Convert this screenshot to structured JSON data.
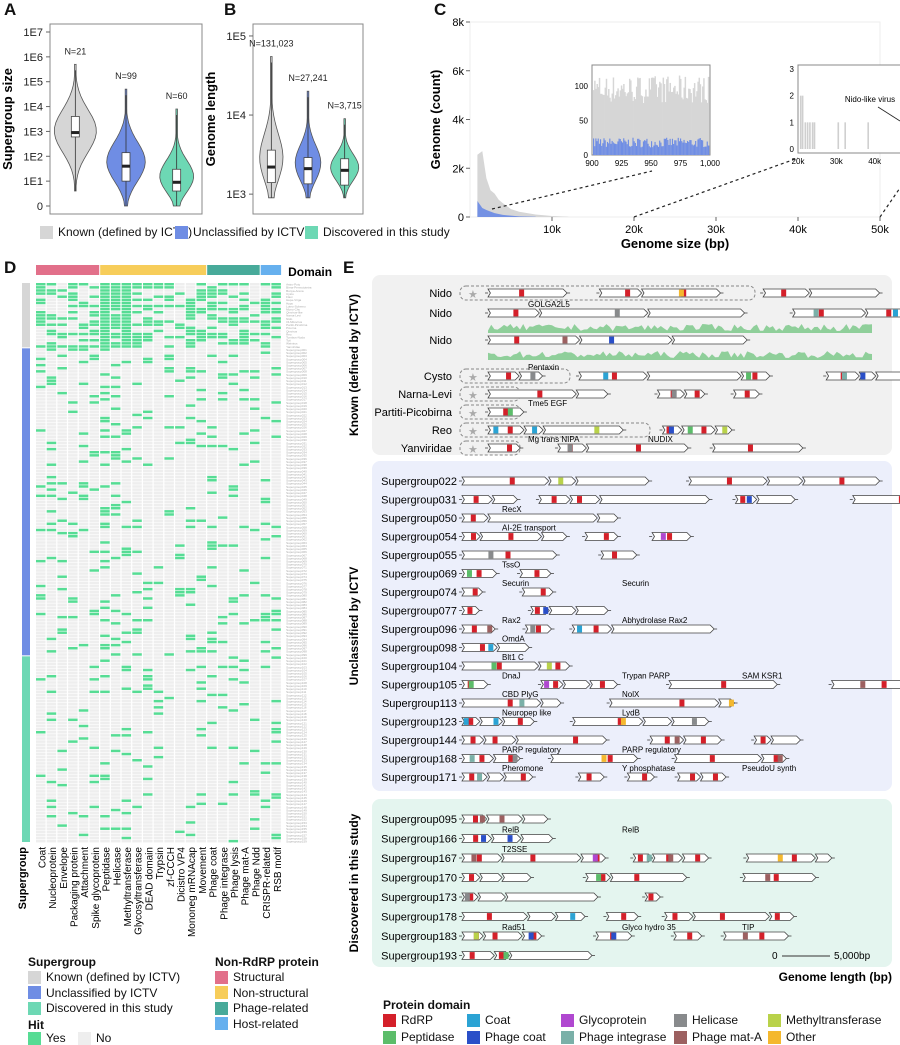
{
  "panels": {
    "a": "A",
    "b": "B",
    "c": "C",
    "d": "D",
    "e": "E"
  },
  "colors": {
    "known": "#d6d6d6",
    "unclassified": "#6f8de4",
    "discovered": "#6dd8b4",
    "hit_yes": "#56dc94",
    "hit_no": "#eeeeee",
    "structural": "#e2708a",
    "nonstructural": "#f7cd5a",
    "phage_related": "#48aa9a",
    "host_related": "#66b0ee"
  },
  "top_legend": [
    {
      "label": "Known (defined by ICTV)",
      "color": "#d6d6d6"
    },
    {
      "label": "Unclassified by ICTV",
      "color": "#6f8de4"
    },
    {
      "label": "Discovered in this study",
      "color": "#6dd8b4"
    }
  ],
  "chart_data": [
    {
      "id": "A",
      "type": "violin",
      "ylabel": "Supergroup size",
      "yscale": "log",
      "ticks": [
        "0",
        "1E1",
        "1E2",
        "1E3",
        "1E4",
        "1E5",
        "1E6",
        "1E7"
      ],
      "groups": [
        {
          "name": "Known (defined by ICTV)",
          "n": "N=21",
          "median": 900,
          "q1": 600,
          "q3": 4000,
          "min": 4,
          "max": 500000
        },
        {
          "name": "Unclassified by ICTV",
          "n": "N=99",
          "median": 40,
          "q1": 10,
          "q3": 140,
          "min": 1,
          "max": 50000
        },
        {
          "name": "Discovered in this study",
          "n": "N=60",
          "median": 9,
          "q1": 4,
          "q3": 30,
          "min": 1,
          "max": 8000
        }
      ]
    },
    {
      "id": "B",
      "type": "violin",
      "ylabel": "Genome length",
      "yscale": "log",
      "ticks": [
        "1E3",
        "1E4",
        "1E5"
      ],
      "groups": [
        {
          "name": "Known (defined by ICTV)",
          "n": "N=131,023",
          "median": 2200,
          "q1": 1400,
          "q3": 3600,
          "min": 900,
          "max": 55000
        },
        {
          "name": "Unclassified by ICTV",
          "n": "N=27,241",
          "median": 2100,
          "q1": 1350,
          "q3": 2900,
          "min": 900,
          "max": 20000
        },
        {
          "name": "Discovered in this study",
          "n": "N=3,715",
          "median": 2000,
          "q1": 1300,
          "q3": 2800,
          "min": 900,
          "max": 9000
        }
      ]
    },
    {
      "id": "C",
      "type": "area",
      "xlabel": "Genome size (bp)",
      "ylabel": "Genome (count)",
      "xticks": [
        "10k",
        "20k",
        "30k",
        "40k",
        "50k"
      ],
      "yticks": [
        "0",
        "2k",
        "4k",
        "6k",
        "8k"
      ],
      "xlim": [
        0,
        50000
      ],
      "ylim": [
        0,
        8000
      ],
      "series": [
        {
          "name": "Known (defined by ICTV)",
          "x": [
            900,
            1500,
            2000,
            2500,
            3000,
            3500,
            4000,
            5000,
            6000,
            8000,
            10000,
            12000
          ],
          "y": [
            3000,
            2400,
            1700,
            1200,
            900,
            700,
            600,
            300,
            200,
            100,
            40,
            10
          ]
        },
        {
          "name": "Unclassified by ICTV",
          "x": [
            900,
            1500,
            2000,
            3000,
            4000,
            6000,
            8000
          ],
          "y": [
            600,
            400,
            300,
            150,
            80,
            30,
            10
          ]
        }
      ],
      "inset_left": {
        "xticks": [
          "900",
          "925",
          "950",
          "975",
          "1,000"
        ],
        "yticks": [
          "0",
          "50",
          "100"
        ],
        "xlim": [
          900,
          1000
        ],
        "ylim": [
          0,
          130
        ],
        "known_mean": 95,
        "unclassified_mean": 18
      },
      "inset_right": {
        "xticks": [
          "20k",
          "30k",
          "40k",
          "50k"
        ],
        "yticks": [
          "0",
          "1",
          "2",
          "3"
        ],
        "xlim": [
          20000,
          50000
        ],
        "ylim": [
          0,
          3
        ],
        "bars": [
          {
            "x": 20500,
            "y": 2
          },
          {
            "x": 21000,
            "y": 2
          },
          {
            "x": 21700,
            "y": 1
          },
          {
            "x": 22300,
            "y": 1
          },
          {
            "x": 22900,
            "y": 1
          },
          {
            "x": 23600,
            "y": 1
          },
          {
            "x": 24100,
            "y": 1
          },
          {
            "x": 30300,
            "y": 1
          },
          {
            "x": 32100,
            "y": 1
          },
          {
            "x": 38100,
            "y": 1
          },
          {
            "x": 47100,
            "y": 1
          }
        ],
        "annotation": "Nido-like virus"
      }
    },
    {
      "id": "D",
      "type": "heatmap",
      "xlabel": "Supergroup",
      "domain_label": "Domain",
      "columns": [
        "Coat",
        "Nucleoprotein",
        "Envelope",
        "Packaging protein",
        "Attachment",
        "Spike glycoprotein",
        "Peptidase",
        "Helicase",
        "Methyltransferase",
        "Glycosyltransferase",
        "DEAD domain",
        "Trypsin",
        "zf-CCCH",
        "Dicistro VP4",
        "Mononeg mRNAcap",
        "Movement",
        "Phage coat",
        "Phage integrase",
        "Phage lysis",
        "Phage mat-A",
        "Phage Ndd",
        "CRISPR-related",
        "RSB motif"
      ],
      "column_groups": [
        {
          "name": "Structural",
          "span": 6
        },
        {
          "name": "Non-structural",
          "span": 10
        },
        {
          "name": "Phage-related",
          "span": 5
        },
        {
          "name": "Host-related",
          "span": 2
        }
      ],
      "row_groups": [
        {
          "name": "Known (defined by ICTV)",
          "count": 21
        },
        {
          "name": "Unclassified by ICTV",
          "count": 99
        },
        {
          "name": "Discovered in this study",
          "count": 60
        }
      ],
      "row_labels_known": [
        "Astro-Poty",
        "Birna-Permutotetra",
        "Bunya-Arena",
        "Cysto",
        "Flavi",
        "Hepe-Virga",
        "Hypo",
        "Luteo-Sobemo",
        "Mono-Chu",
        "Qinvirus-like",
        "Narna-Levi",
        "Nido",
        "Ol-Mitovirus",
        "Partiti-Picobirna",
        "Picorna",
        "Qinvirus",
        "Reo",
        "Tombus-Noda",
        "Toti",
        "Weivirus",
        "Yanviridae"
      ]
    },
    {
      "id": "E",
      "type": "genome-map",
      "scale_label": "0",
      "scale_end": "5,000bp",
      "xlabel": "Genome length (bp)"
    }
  ],
  "legend_d": {
    "supergroup_title": "Supergroup",
    "supergroup": [
      {
        "label": "Known (defined by ICTV)",
        "color": "#d6d6d6"
      },
      {
        "label": "Unclassified by ICTV",
        "color": "#6f8de4"
      },
      {
        "label": "Discovered in this study",
        "color": "#6dd8b4"
      }
    ],
    "hit_title": "Hit",
    "hit": [
      {
        "label": "Yes",
        "color": "#56dc94"
      },
      {
        "label": "No",
        "color": "#eeeeee"
      }
    ],
    "nonrdrp_title": "Non-RdRP protein",
    "nonrdrp": [
      {
        "label": "Structural",
        "color": "#e2708a"
      },
      {
        "label": "Non-structural",
        "color": "#f7cd5a"
      },
      {
        "label": "Phage-related",
        "color": "#48aa9a"
      },
      {
        "label": "Host-related",
        "color": "#66b0ee"
      }
    ]
  },
  "legend_e": {
    "title": "Protein domain",
    "items": [
      {
        "label": "RdRP",
        "color": "#d4202a"
      },
      {
        "label": "Coat",
        "color": "#2ba3d4"
      },
      {
        "label": "Glycoprotein",
        "color": "#b048d0"
      },
      {
        "label": "Helicase",
        "color": "#888a8c"
      },
      {
        "label": "Methyltransferase",
        "color": "#b9d24a"
      },
      {
        "label": "Peptidase",
        "color": "#5cbd6a"
      },
      {
        "label": "Phage coat",
        "color": "#2a4fc8"
      },
      {
        "label": "Phage integrase",
        "color": "#7ab0a8"
      },
      {
        "label": "Phage mat-A",
        "color": "#9c6060"
      },
      {
        "label": "Other",
        "color": "#f4b82e"
      }
    ]
  },
  "e_sections": [
    {
      "title": "Known (defined by ICTV)",
      "bg": "#f1f1f1",
      "rows": [
        {
          "name": "Nido",
          "ref": true,
          "labels": [],
          "track": false
        },
        {
          "name": "Nido",
          "ref": false,
          "labels": [
            "GOLGA2L5"
          ],
          "track": true
        },
        {
          "name": "Nido",
          "ref": false,
          "labels": [],
          "track": true
        },
        {
          "name": "Cysto",
          "ref": true,
          "labels": [
            "Pentaxin"
          ],
          "track": false
        },
        {
          "name": "Narna-Levi",
          "ref": true,
          "labels": [],
          "track": false
        },
        {
          "name": "Partiti-Picobirna",
          "ref": true,
          "labels": [
            "Tme5 EGF"
          ],
          "track": false
        },
        {
          "name": "Reo",
          "ref": true,
          "labels": [],
          "track": false
        },
        {
          "name": "Yanviridae",
          "ref": true,
          "labels": [
            "Mg trans NIPA",
            "NUDIX"
          ],
          "track": false
        }
      ]
    },
    {
      "title": "Unclassified by ICTV",
      "bg": "#eceffb",
      "rows": [
        {
          "name": "Supergroup022",
          "labels": []
        },
        {
          "name": "Supergroup031",
          "labels": []
        },
        {
          "name": "Supergroup050",
          "labels": [
            "RecX"
          ]
        },
        {
          "name": "Supergroup054",
          "labels": [
            "AI-2E transport"
          ]
        },
        {
          "name": "Supergroup055",
          "labels": []
        },
        {
          "name": "Supergroup069",
          "labels": [
            "TssO"
          ]
        },
        {
          "name": "Supergroup074",
          "labels": [
            "Securin",
            "Securin"
          ]
        },
        {
          "name": "Supergroup077",
          "labels": []
        },
        {
          "name": "Supergroup096",
          "labels": [
            "Rax2",
            "Abhydrolase Rax2"
          ]
        },
        {
          "name": "Supergroup098",
          "labels": [
            "OmdA"
          ]
        },
        {
          "name": "Supergroup104",
          "labels": [
            "Blt1 C"
          ]
        },
        {
          "name": "Supergroup105",
          "labels": [
            "DnaJ",
            "Trypan PARP",
            "SAM KSR1"
          ]
        },
        {
          "name": "Supergroup113",
          "labels": [
            "CBD PlyG",
            "NolX"
          ]
        },
        {
          "name": "Supergroup123",
          "labels": [
            "Neuropep like",
            "LydB"
          ]
        },
        {
          "name": "Supergroup144",
          "labels": []
        },
        {
          "name": "Supergroup168",
          "labels": [
            "PARP regulatory",
            "PARP regulatory"
          ]
        },
        {
          "name": "Supergroup171",
          "labels": [
            "Pheromone",
            "Y phosphatase",
            "PseudoU synth"
          ]
        }
      ]
    },
    {
      "title": "Discovered in this study",
      "bg": "#e4f5ef",
      "rows": [
        {
          "name": "Supergroup095",
          "labels": []
        },
        {
          "name": "Supergroup166",
          "labels": [
            "RelB",
            "RelB"
          ]
        },
        {
          "name": "Supergroup167",
          "labels": [
            "T2SSE"
          ]
        },
        {
          "name": "Supergroup170",
          "labels": []
        },
        {
          "name": "Supergroup173",
          "labels": []
        },
        {
          "name": "Supergroup178",
          "labels": []
        },
        {
          "name": "Supergroup183",
          "labels": [
            "Rad51",
            "Glyco hydro 35",
            "TIP"
          ]
        },
        {
          "name": "Supergroup193",
          "labels": []
        }
      ]
    }
  ]
}
